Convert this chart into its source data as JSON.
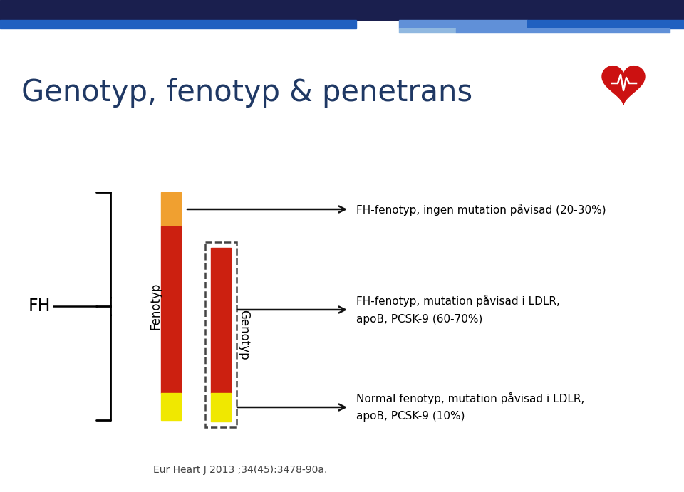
{
  "title": "Genotyp, fenotyp & penetrans",
  "title_color": "#1f3864",
  "title_fontsize": 30,
  "background_color": "#ffffff",
  "fh_label": "FH",
  "fenotyp_label": "Fenotyp",
  "genotyp_label": "Genotyp",
  "annotation1": "FH-fenotyp, ingen mutation påvisad (20-30%)",
  "annotation2_line1": "FH-fenotyp, mutation påvisad i LDLR,",
  "annotation2_line2": "apoB, PCSK-9 (60-70%)",
  "annotation3_line1": "Normal fenotyp, mutation påvisad i LDLR,",
  "annotation3_line2": "apoB, PCSK-9 (10%)",
  "footer": "Eur Heart J 2013 ;34(45):3478-90a.",
  "orange_color": "#f0a030",
  "red_color": "#cc2010",
  "yellow_color": "#f0e800",
  "dashed_box_color": "#444444",
  "arrow_color": "#111111",
  "header_dark": "#1a1f4e",
  "header_blue1": "#2060c0",
  "header_blue2": "#6090d8",
  "header_blue3": "#90b8e0"
}
